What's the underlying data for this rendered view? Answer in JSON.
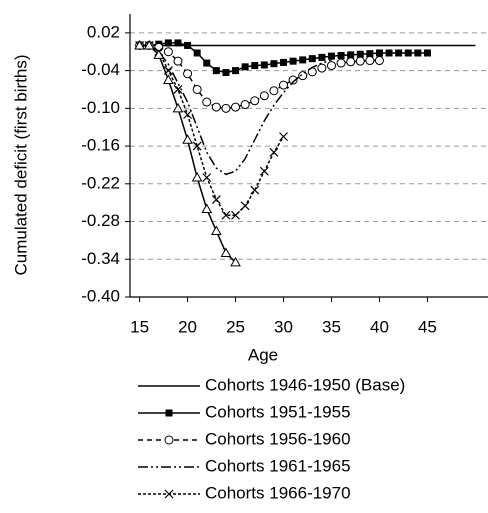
{
  "chart_data": {
    "type": "line",
    "x_label": "Age",
    "y_label": "Cumulated deficit (first births)",
    "xlim": [
      14,
      51
    ],
    "ylim": [
      -0.4,
      0.05
    ],
    "xticks": [
      15,
      20,
      25,
      30,
      35,
      40,
      45
    ],
    "yticks": [
      0.02,
      -0.04,
      {
        "value": -0.1,
        "label": "-0.10"
      },
      -0.16,
      -0.22,
      -0.28,
      -0.34,
      {
        "value": -0.4,
        "label": "-0.40"
      }
    ],
    "grid": true,
    "series": [
      {
        "name": "Cohorts 1946-1950 (Base)",
        "color": "#000000",
        "dash": "none",
        "marker": "none",
        "x": [
          15,
          50
        ],
        "values": [
          0,
          0
        ]
      },
      {
        "name": "Cohorts 1951-1955",
        "color": "#000000",
        "dash": "none",
        "marker": "square",
        "x": [
          15,
          16,
          17,
          18,
          19,
          20,
          21,
          22,
          23,
          24,
          25,
          26,
          27,
          28,
          29,
          30,
          31,
          32,
          33,
          34,
          35,
          36,
          37,
          38,
          39,
          40,
          41,
          42,
          43,
          44,
          45
        ],
        "values": [
          0,
          0,
          0.002,
          0.004,
          0.004,
          0,
          -0.012,
          -0.028,
          -0.04,
          -0.043,
          -0.04,
          -0.034,
          -0.032,
          -0.031,
          -0.029,
          -0.027,
          -0.025,
          -0.023,
          -0.021,
          -0.019,
          -0.017,
          -0.016,
          -0.015,
          -0.014,
          -0.013,
          -0.012,
          -0.012,
          -0.012,
          -0.012,
          -0.012,
          -0.012
        ]
      },
      {
        "name": "Cohorts 1956-1960",
        "color": "#000000",
        "dash": "5 4",
        "marker": "circle",
        "x": [
          15,
          16,
          17,
          18,
          19,
          20,
          21,
          22,
          23,
          24,
          25,
          26,
          27,
          28,
          29,
          30,
          31,
          32,
          33,
          34,
          35,
          36,
          37,
          38,
          39,
          40
        ],
        "values": [
          0,
          0,
          -0.003,
          -0.01,
          -0.025,
          -0.045,
          -0.07,
          -0.09,
          -0.098,
          -0.1,
          -0.098,
          -0.094,
          -0.088,
          -0.08,
          -0.072,
          -0.063,
          -0.055,
          -0.048,
          -0.042,
          -0.036,
          -0.032,
          -0.028,
          -0.026,
          -0.025,
          -0.024,
          -0.024
        ]
      },
      {
        "name": "Cohorts 1961-1965",
        "color": "#000000",
        "dash": "10 3 2 3 2 3",
        "marker": "none",
        "x": [
          15,
          16,
          17,
          18,
          19,
          20,
          21,
          22,
          23,
          24,
          25,
          26,
          27,
          28,
          29,
          30,
          31,
          32,
          33,
          34,
          35
        ],
        "values": [
          0,
          0,
          -0.01,
          -0.03,
          -0.06,
          -0.09,
          -0.13,
          -0.17,
          -0.195,
          -0.205,
          -0.2,
          -0.18,
          -0.15,
          -0.12,
          -0.095,
          -0.075,
          -0.058,
          -0.045,
          -0.035,
          -0.028,
          -0.023
        ]
      },
      {
        "name": "Cohorts 1966-1970",
        "color": "#000000",
        "dash": "3 2",
        "marker": "cross",
        "x": [
          15,
          16,
          17,
          18,
          19,
          20,
          21,
          22,
          23,
          24,
          25,
          26,
          27,
          28,
          29,
          30
        ],
        "values": [
          0,
          0,
          -0.01,
          -0.04,
          -0.07,
          -0.11,
          -0.16,
          -0.21,
          -0.245,
          -0.27,
          -0.27,
          -0.255,
          -0.23,
          -0.2,
          -0.17,
          -0.145
        ]
      },
      {
        "color": "#000000",
        "dash": "none",
        "marker": "triangle",
        "x": [
          15,
          16,
          17,
          18,
          19,
          20,
          21,
          22,
          23,
          24,
          25
        ],
        "values": [
          0,
          0,
          -0.015,
          -0.055,
          -0.1,
          -0.15,
          -0.21,
          -0.26,
          -0.295,
          -0.33,
          -0.345
        ]
      }
    ]
  }
}
